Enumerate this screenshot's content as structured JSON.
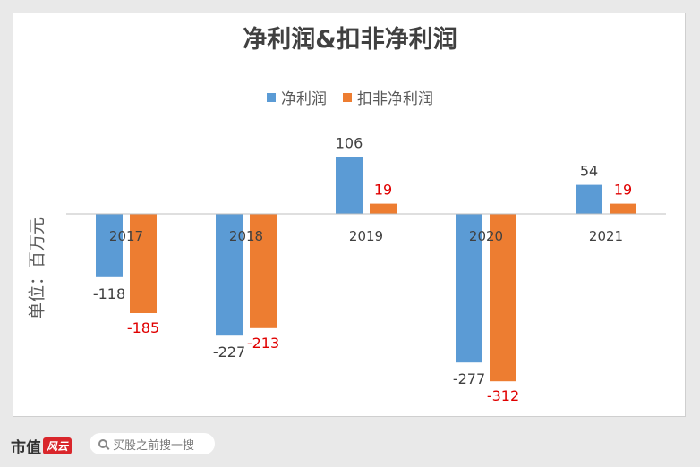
{
  "chart_data": {
    "type": "bar",
    "title": "净利润&扣非净利润",
    "ylabel": "单位：百万元",
    "categories": [
      "2017",
      "2018",
      "2019",
      "2020",
      "2021"
    ],
    "series": [
      {
        "name": "净利润",
        "values": [
          -118,
          -227,
          106,
          -277,
          54
        ],
        "color": "#5b9bd5"
      },
      {
        "name": "扣非净利润",
        "values": [
          -185,
          -213,
          19,
          -312,
          19
        ],
        "color": "#ed7d31"
      }
    ],
    "series_label_colors": [
      "#404040",
      "#e00000"
    ],
    "ylim": [
      -400,
      200
    ],
    "grid": false,
    "legend": "top"
  },
  "footer": {
    "logo_text": "市值",
    "logo_mark": "风云",
    "search_placeholder": "买股之前搜一搜"
  }
}
